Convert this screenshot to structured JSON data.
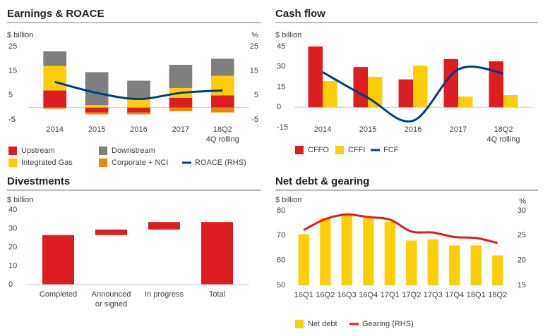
{
  "chart_data": [
    {
      "type": "bar",
      "stacked": true,
      "title": "Earnings & ROACE",
      "y_label": "$ billion",
      "y2_label": "%",
      "categories": [
        "2014",
        "2015",
        "2016",
        "2017",
        "18Q2\n4Q rolling"
      ],
      "series": [
        {
          "name": "Upstream",
          "color": "#dd1d21",
          "values": [
            7,
            -2,
            -2,
            4,
            5
          ]
        },
        {
          "name": "Integrated Gas",
          "color": "#fbce07",
          "values": [
            10,
            1,
            3.5,
            4,
            8
          ]
        },
        {
          "name": "Downstream",
          "color": "#7f7f7f",
          "values": [
            6,
            13.5,
            7.5,
            9.5,
            7
          ]
        },
        {
          "name": "Corporate + NCI",
          "color": "#eb8705",
          "values": [
            -0.5,
            -0.8,
            -0.8,
            -1.5,
            -2
          ]
        },
        {
          "name": "ROACE (RHS)",
          "type": "line",
          "axis": "y2",
          "color": "#003c88",
          "values": [
            10.5,
            6,
            3.5,
            6,
            7
          ]
        }
      ],
      "ylim": [
        -5,
        25
      ],
      "yticks": [
        -5,
        5,
        15,
        25
      ],
      "y2lim": [
        -5,
        25
      ],
      "y2ticks": [
        -5,
        5,
        15,
        25
      ]
    },
    {
      "type": "bar",
      "stacked": false,
      "title": "Cash flow",
      "y_label": "$ billion",
      "categories": [
        "2014",
        "2015",
        "2016",
        "2017",
        "18Q2\n4Q rolling"
      ],
      "series": [
        {
          "name": "CFFO",
          "color": "#dd1d21",
          "values": [
            45,
            29.8,
            20.6,
            35.7,
            34
          ]
        },
        {
          "name": "CFFI",
          "color": "#fbce07",
          "values": [
            19.5,
            22.5,
            30.8,
            8,
            9
          ]
        },
        {
          "name": "FCF",
          "type": "line",
          "color": "#003c88",
          "values": [
            26,
            7,
            -10,
            28,
            25
          ]
        }
      ],
      "ylim": [
        -15,
        45
      ],
      "yticks": [
        -15,
        0,
        15,
        30,
        45
      ]
    },
    {
      "type": "waterfall",
      "title": "Divestments",
      "y_label": "$ billion",
      "categories": [
        "Completed",
        "Announced\nor signed",
        "In progress",
        "Total"
      ],
      "values": [
        26.5,
        3,
        4,
        33.5
      ],
      "color": "#dd1d21",
      "ylim": [
        0,
        40
      ],
      "yticks": [
        0,
        10,
        20,
        30,
        40
      ]
    },
    {
      "type": "bar",
      "stacked": false,
      "title": "Net debt & gearing",
      "y_label": "$ billion",
      "y2_label": "%",
      "categories": [
        "16Q1",
        "16Q2",
        "16Q3",
        "16Q4",
        "17Q1",
        "17Q2",
        "17Q3",
        "17Q4",
        "18Q1",
        "18Q2"
      ],
      "series": [
        {
          "name": "Net debt",
          "color": "#fbce07",
          "values": [
            70.5,
            77,
            79,
            77.5,
            75.5,
            68,
            68.5,
            66,
            66,
            62
          ]
        },
        {
          "name": "Gearing (RHS)",
          "type": "line",
          "axis": "y2",
          "color": "#dd1d21",
          "values": [
            26.1,
            28.3,
            29.2,
            28.7,
            28.2,
            25.8,
            25.6,
            24.7,
            24.5,
            23.5
          ]
        }
      ],
      "ylim": [
        50,
        80
      ],
      "yticks": [
        50,
        60,
        70,
        80
      ],
      "y2lim": [
        15,
        30
      ],
      "y2ticks": [
        15,
        20,
        25,
        30
      ]
    }
  ]
}
